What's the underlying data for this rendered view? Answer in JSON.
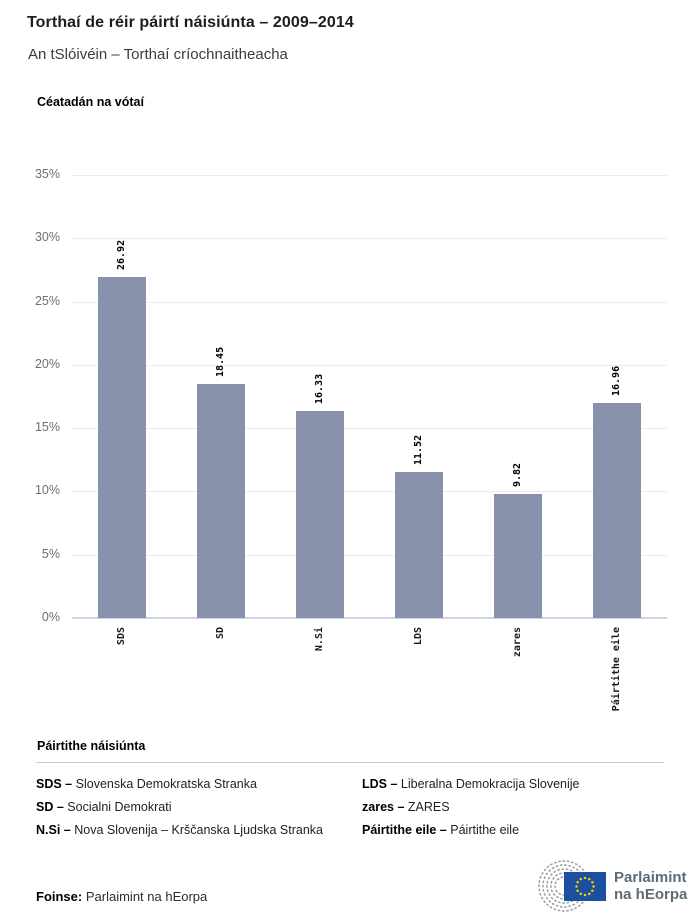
{
  "header": {
    "title": "Torthaí de réir páirtí náisiúnta – 2009–2014",
    "subtitle": "An tSlóivéin – Torthaí críochnaitheacha"
  },
  "chart_data": {
    "type": "bar",
    "title": "Céatadán na vótaí",
    "categories": [
      "SDS",
      "SD",
      "N.Si",
      "LDS",
      "zares",
      "Páirtithe eile"
    ],
    "values": [
      26.92,
      18.45,
      16.33,
      11.52,
      9.82,
      16.96
    ],
    "value_labels": [
      "26.92",
      "18.45",
      "16.33",
      "11.52",
      "9.82",
      "16.96"
    ],
    "ylabel": "Céatadán na vótaí",
    "yticks": [
      0,
      5,
      10,
      15,
      20,
      25,
      30,
      35
    ],
    "ytick_labels": [
      "0%",
      "5%",
      "10%",
      "15%",
      "20%",
      "25%",
      "30%",
      "35%"
    ],
    "ylim": [
      0,
      35
    ],
    "grid": true,
    "legend_position": "none"
  },
  "colors": {
    "bar": "#8791ac",
    "grid": "#ececec",
    "axis_line": "#ccd4e8",
    "flag_blue": "#1b4fa0",
    "star_yellow": "#ffcc00",
    "logo_gray": "#999ea2",
    "logo_text": "#5d6d77"
  },
  "legend": {
    "heading": "Páirtithe náisiúnta",
    "items": [
      {
        "abbr": "SDS –",
        "name": "Slovenska Demokratska Stranka"
      },
      {
        "abbr": "SD –",
        "name": "Socialni Demokrati"
      },
      {
        "abbr": "N.Si –",
        "name": "Nova Slovenija – Krščanska Ljudska Stranka"
      },
      {
        "abbr": "LDS –",
        "name": "Liberalna Demokracija Slovenije"
      },
      {
        "abbr": "zares –",
        "name": "ZARES"
      },
      {
        "abbr": "Páirtithe eile –",
        "name": "Páirtithe eile"
      }
    ]
  },
  "footer": {
    "source_label": "Foinse:",
    "source_value": "Parlaimint na hEorpa",
    "logo_line1": "Parlaimint",
    "logo_line2": "na hEorpa"
  }
}
